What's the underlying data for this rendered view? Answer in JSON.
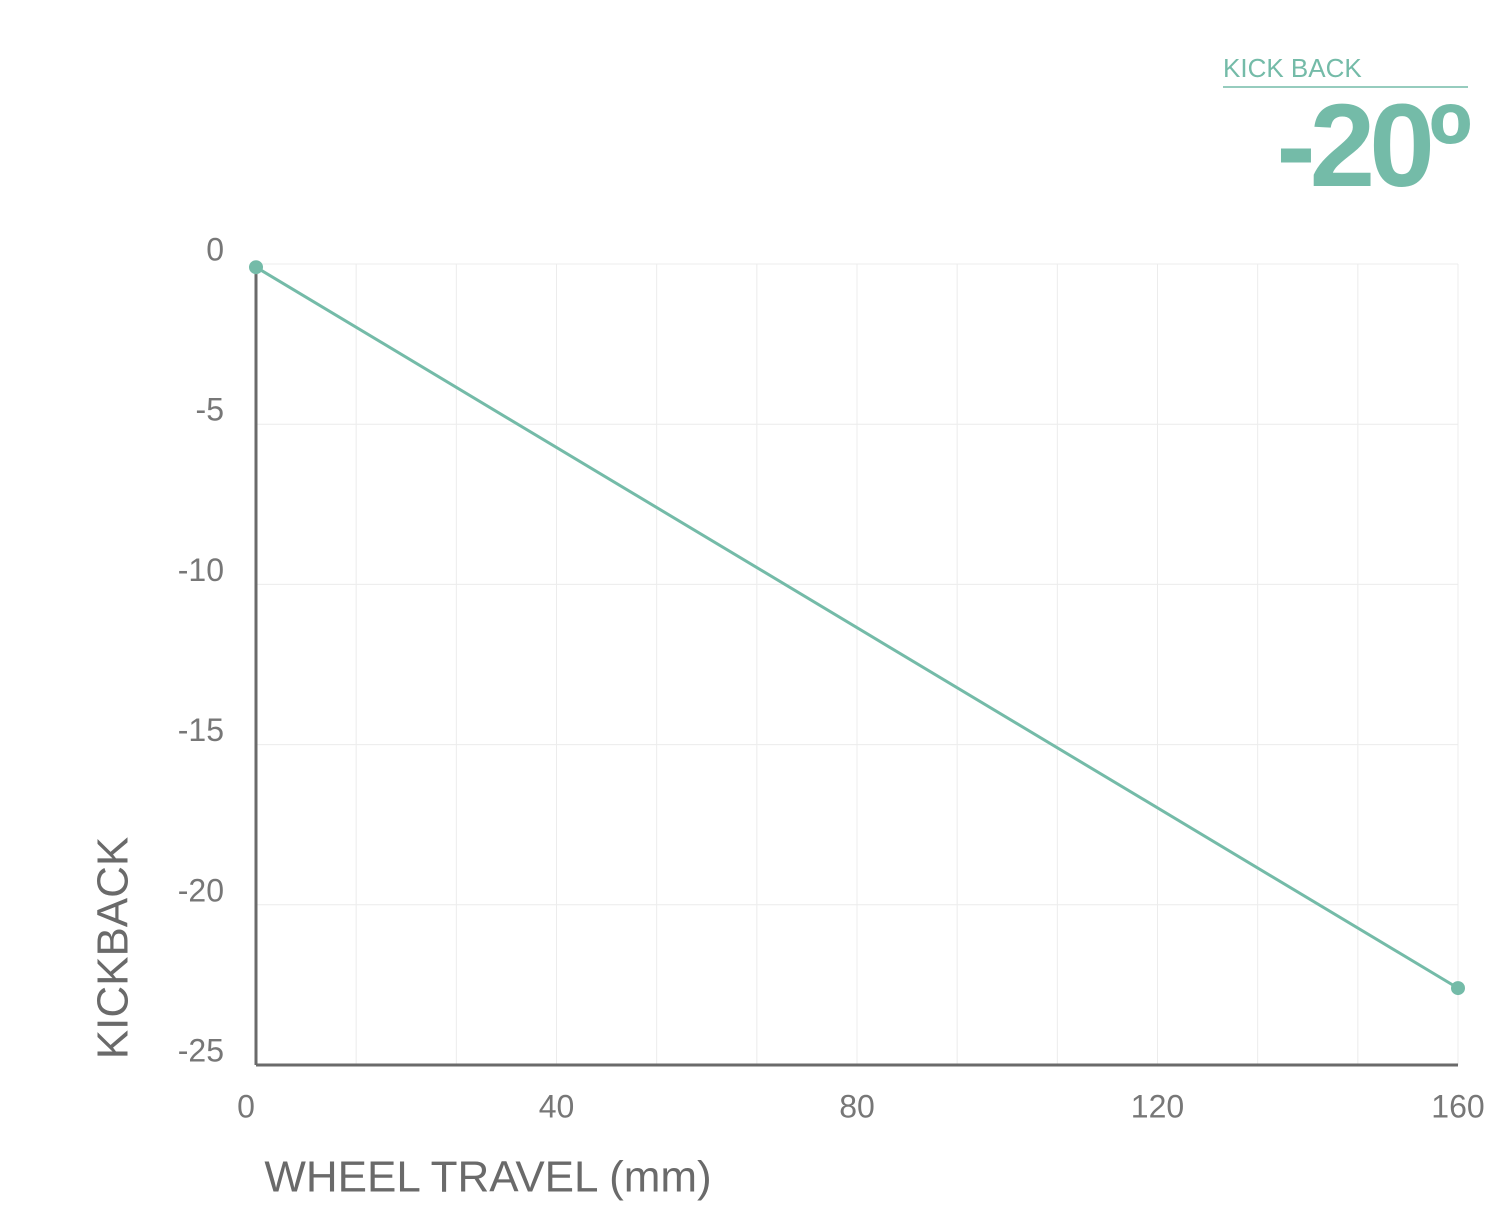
{
  "chart_data": {
    "type": "line",
    "annotation": {
      "label": "KICK BACK",
      "value": "-20º"
    },
    "x_label": "WHEEL TRAVEL (mm)",
    "y_label": "KICKBACK",
    "x": [
      0,
      160
    ],
    "values": [
      -0.1,
      -22.6
    ],
    "color": "#74bba8",
    "xlim": [
      0,
      160
    ],
    "xticks": [
      0,
      40,
      80,
      120,
      160
    ],
    "ylim": [
      -25,
      0
    ],
    "yticks": [
      0,
      -5,
      -10,
      -15,
      -20,
      -25
    ],
    "grid": true,
    "x_grid_divisions": 12
  }
}
